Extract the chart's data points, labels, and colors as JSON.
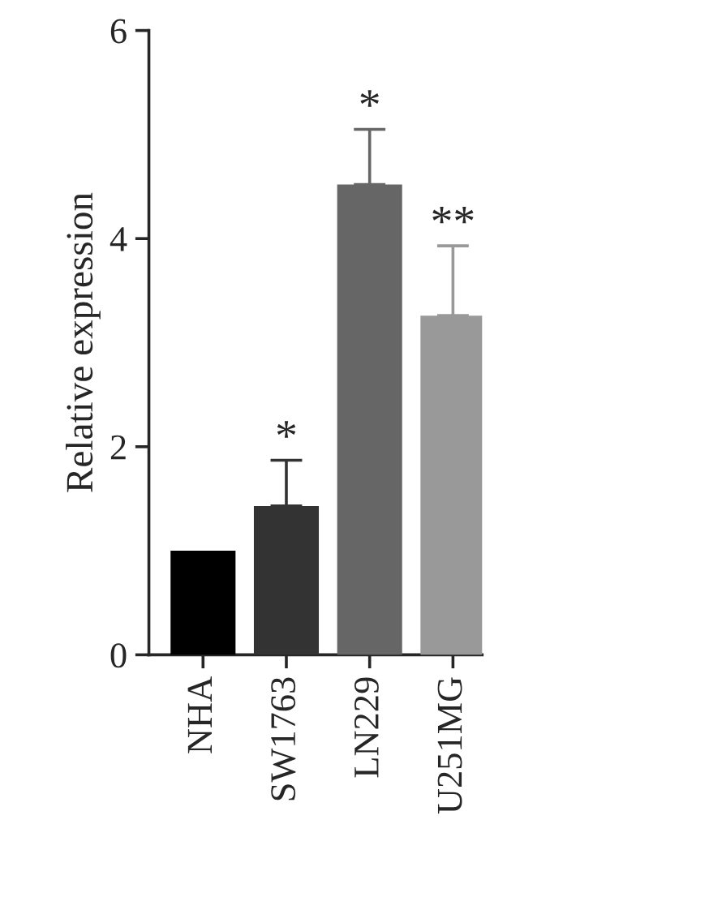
{
  "chart_data": {
    "type": "bar",
    "ylabel": "Relative expression",
    "categories": [
      "NHA",
      "SW1763",
      "LN229",
      "U251MG"
    ],
    "values": [
      1.0,
      1.43,
      4.52,
      3.26
    ],
    "colors": [
      "#000000",
      "#333333",
      "#666666",
      "#999999"
    ],
    "errors": [
      null,
      [
        1.43,
        1.87
      ],
      [
        4.52,
        5.05
      ],
      [
        3.26,
        3.93
      ]
    ],
    "ylim": [
      0,
      6
    ],
    "yticks": [
      0,
      2,
      4,
      6
    ],
    "grid": false,
    "annotations": [
      {
        "text": "*",
        "x": "SW1763",
        "y": 1.87
      },
      {
        "text": "*",
        "x": "LN229",
        "y": 5.05
      },
      {
        "text": "**",
        "x": "U251MG",
        "y": 3.93
      }
    ]
  }
}
